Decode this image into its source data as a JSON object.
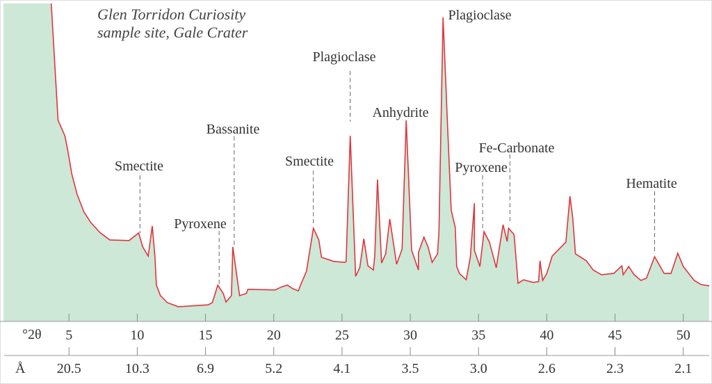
{
  "chart_data": {
    "type": "area",
    "title_lines": [
      "Glen Torridon Curiosity",
      "sample site, Gale Crater"
    ],
    "xlabel": "°2θ",
    "x2label": "Å",
    "xlim": [
      0.2,
      51.9
    ],
    "ylim": [
      0,
      100
    ],
    "grid": false,
    "x_ticks": [
      5,
      10,
      15,
      20,
      25,
      30,
      35,
      40,
      45,
      50
    ],
    "x_tick_labels": [
      "5",
      "10",
      "15",
      "20",
      "25",
      "30",
      "35",
      "40",
      "45",
      "50"
    ],
    "x2_tick_labels": [
      "20.5",
      "10.3",
      "6.9",
      "5.2",
      "4.1",
      "3.5",
      "3.0",
      "2.6",
      "2.3",
      "2.1"
    ],
    "colors": {
      "line": "#e0343c",
      "fill": "#cde8d6"
    },
    "series": [
      {
        "x": [
          3.7,
          4.2,
          4.7,
          4.9,
          5.2,
          5.6,
          6.1,
          6.6,
          7.3,
          8.0,
          9.4,
          10.1,
          10.4,
          10.8,
          11.1,
          11.3,
          11.4,
          11.7,
          12.2,
          13.0,
          15.2,
          15.5,
          15.9,
          16.3,
          16.5,
          16.9,
          17.0,
          17.5,
          18.0,
          18.1,
          20.1,
          20.6,
          21.0,
          21.4,
          21.8,
          22.0,
          22.4,
          22.9,
          23.3,
          23.5,
          24.4,
          25.2,
          25.3,
          25.6,
          26.0,
          26.3,
          26.6,
          26.9,
          27.3,
          27.4,
          27.6,
          27.9,
          28.2,
          28.5,
          29.0,
          29.4,
          29.7,
          30.1,
          30.6,
          30.6,
          31.0,
          31.3,
          31.6,
          32.0,
          32.1,
          32.4,
          32.7,
          33.0,
          33.3,
          33.4,
          33.6,
          34.1,
          34.4,
          34.7,
          34.7,
          35.1,
          35.4,
          35.8,
          36.3,
          36.8,
          37.1,
          37.2,
          37.6,
          37.9,
          38.3,
          39.0,
          39.4,
          39.5,
          39.7,
          40.0,
          40.4,
          40.9,
          41.4,
          41.7,
          41.9,
          42.1,
          42.9,
          43.4,
          44.0,
          44.9,
          45.5,
          45.6,
          46.0,
          46.4,
          46.9,
          47.3,
          47.9,
          48.6,
          49.1,
          49.6,
          50.0,
          50.8,
          51.3,
          52.0
        ],
        "y": [
          100,
          63.1,
          58.2,
          53.8,
          46.2,
          39.6,
          34.1,
          30.8,
          27.5,
          25.3,
          25.1,
          27.5,
          23.1,
          20.2,
          29.7,
          19.8,
          11.0,
          7.7,
          5.5,
          4.2,
          4.8,
          5.5,
          11.0,
          8.4,
          5.7,
          7.7,
          23.1,
          7.7,
          8.4,
          9.7,
          9.5,
          10.5,
          11.0,
          9.9,
          9.2,
          11.4,
          15.4,
          29.0,
          25.3,
          19.8,
          18.5,
          18.2,
          18.5,
          58.2,
          13.8,
          16.5,
          25.7,
          17.1,
          15.8,
          20.4,
          44.4,
          18.0,
          20.9,
          31.9,
          17.6,
          22.4,
          63.1,
          22.0,
          15.8,
          21.3,
          26.2,
          23.1,
          18.2,
          20.9,
          27.9,
          95.6,
          64.4,
          34.7,
          29.2,
          16.9,
          14.7,
          12.7,
          19.8,
          36.9,
          22.0,
          16.9,
          27.9,
          24.6,
          16.5,
          30.1,
          24.8,
          29.0,
          27.0,
          11.6,
          12.7,
          11.9,
          12.1,
          18.7,
          12.5,
          14.7,
          20.2,
          22.4,
          24.6,
          39.1,
          32.3,
          20.9,
          18.7,
          15.8,
          14.3,
          14.7,
          17.1,
          14.3,
          16.9,
          14.3,
          12.5,
          13.2,
          20.0,
          14.7,
          14.7,
          21.1,
          16.9,
          12.5,
          11.2,
          10.8
        ]
      }
    ],
    "annotations": [
      {
        "label": "Smectite",
        "two_theta": 10.2,
        "dashed": true
      },
      {
        "label": "Pyroxene",
        "two_theta": 16.0,
        "dashed": true
      },
      {
        "label": "Bassanite",
        "two_theta": 17.1,
        "dashed": true
      },
      {
        "label": "Smectite",
        "two_theta": 22.9,
        "dashed": true
      },
      {
        "label": "Plagioclase",
        "two_theta": 25.6,
        "dashed": true
      },
      {
        "label": "Anhydrite",
        "two_theta": 29.7,
        "dashed": false
      },
      {
        "label": "Plagioclase",
        "two_theta": 32.4,
        "dashed": false
      },
      {
        "label": "Pyroxene",
        "two_theta": 35.3,
        "dashed": true
      },
      {
        "label": "Fe-Carbonate",
        "two_theta": 37.3,
        "dashed": true
      },
      {
        "label": "Hematite",
        "two_theta": 47.9,
        "dashed": true
      }
    ]
  }
}
